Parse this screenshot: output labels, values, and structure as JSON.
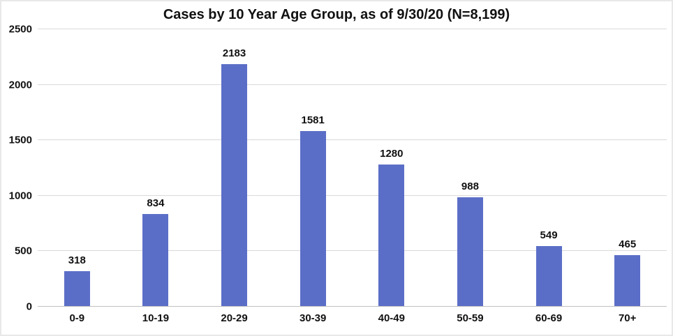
{
  "chart_data": {
    "type": "bar",
    "title": "Cases by 10 Year Age Group, as of 9/30/20 (N=8,199)",
    "categories": [
      "0-9",
      "10-19",
      "20-29",
      "30-39",
      "40-49",
      "50-59",
      "60-69",
      "70+"
    ],
    "values": [
      318,
      834,
      2183,
      1581,
      1280,
      988,
      549,
      465
    ],
    "xlabel": "",
    "ylabel": "",
    "ylim": [
      0,
      2500
    ],
    "yticks": [
      0,
      500,
      1000,
      1500,
      2000,
      2500
    ],
    "grid": true,
    "legend": false,
    "data_labels": true,
    "colors": {
      "bar": "#5b6ec7",
      "gridline": "#d9d9d9",
      "axis_line": "#c0c0c0",
      "text": "#111111",
      "background": "#ffffff",
      "border": "#e8e8e8"
    }
  }
}
